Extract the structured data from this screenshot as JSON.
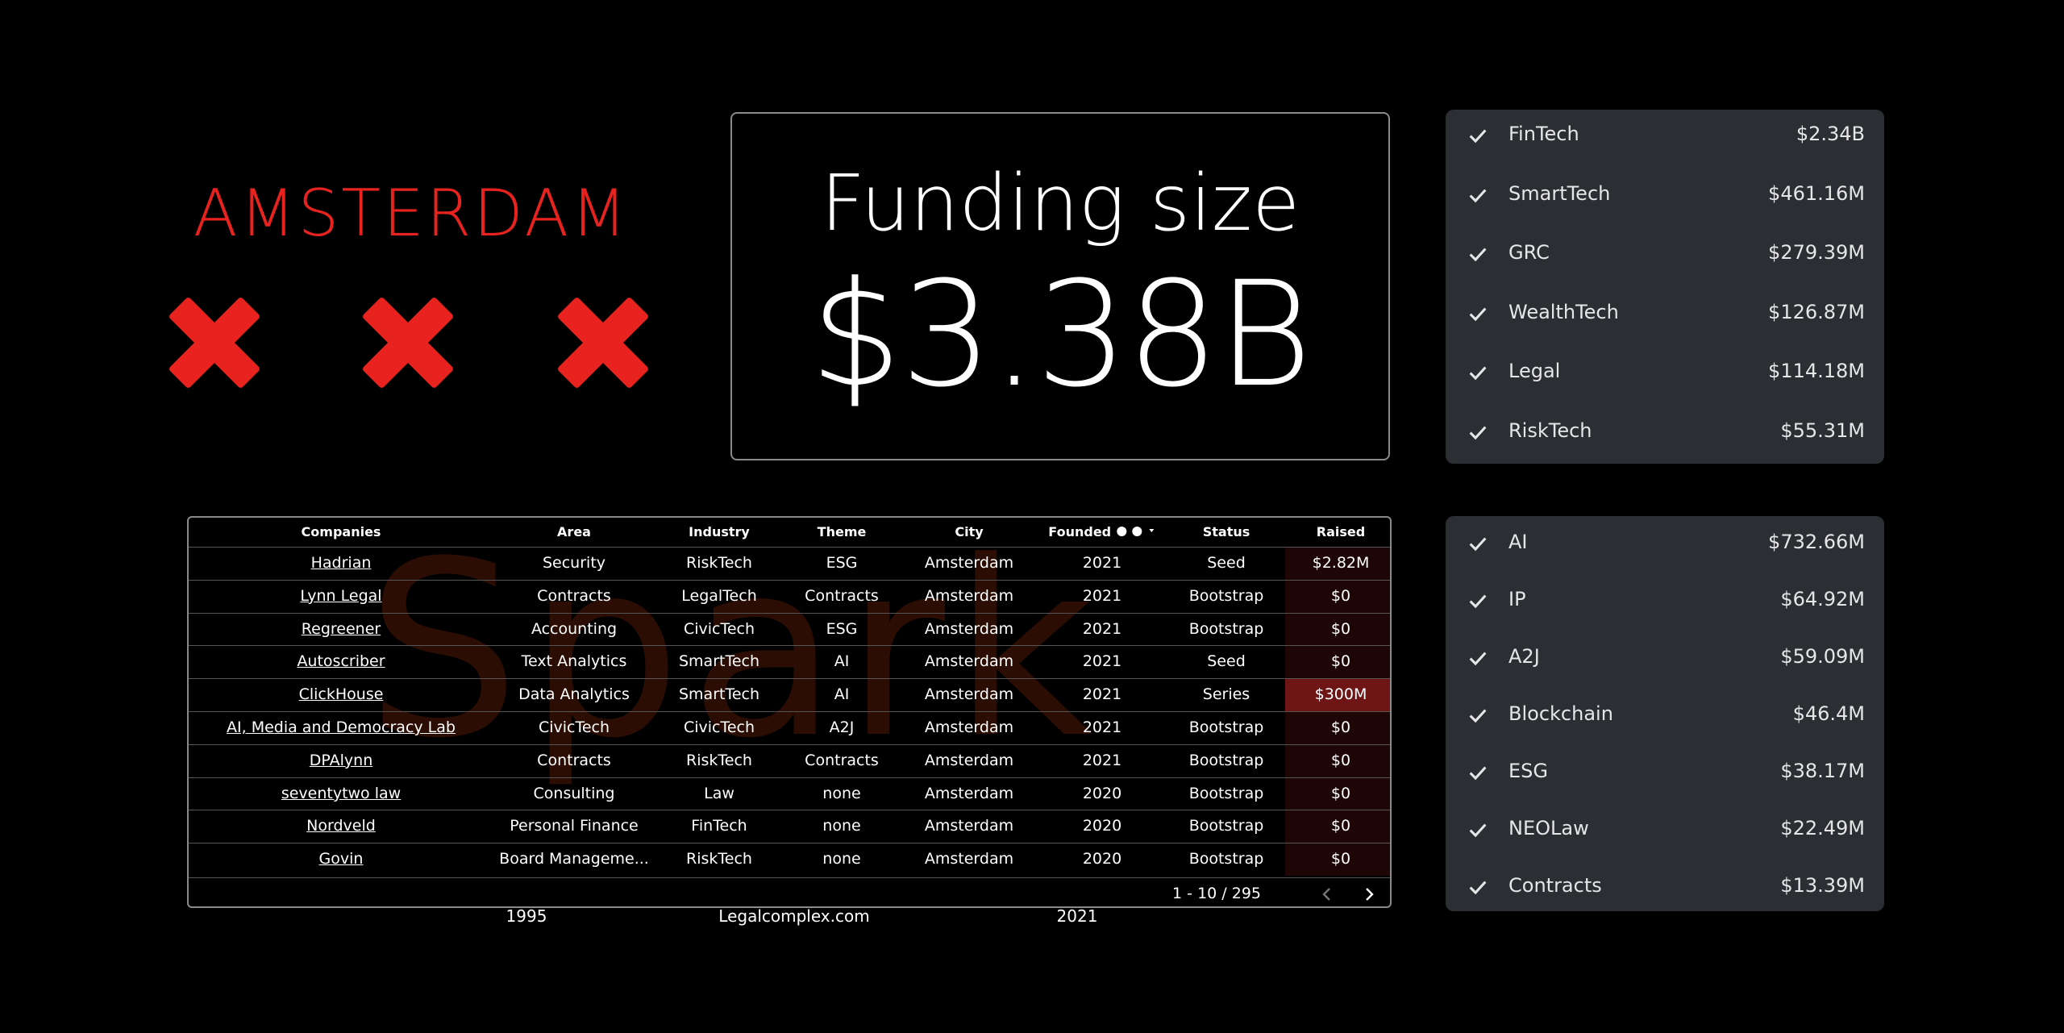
{
  "header": {
    "title": "AMSTERDAM"
  },
  "kpi": {
    "label": "Funding size",
    "value": "$3.38B"
  },
  "industry_filter": {
    "items": [
      {
        "label": "FinTech",
        "value": "$2.34B"
      },
      {
        "label": "SmartTech",
        "value": "$461.16M"
      },
      {
        "label": "GRC",
        "value": "$279.39M"
      },
      {
        "label": "WealthTech",
        "value": "$126.87M"
      },
      {
        "label": "Legal",
        "value": "$114.18M"
      },
      {
        "label": "RiskTech",
        "value": "$55.31M"
      }
    ]
  },
  "theme_filter": {
    "items": [
      {
        "label": "AI",
        "value": "$732.66M"
      },
      {
        "label": "IP",
        "value": "$64.92M"
      },
      {
        "label": "A2J",
        "value": "$59.09M"
      },
      {
        "label": "Blockchain",
        "value": "$46.4M"
      },
      {
        "label": "ESG",
        "value": "$38.17M"
      },
      {
        "label": "NEOLaw",
        "value": "$22.49M"
      },
      {
        "label": "Contracts",
        "value": "$13.39M"
      }
    ]
  },
  "table": {
    "watermark": "Spark",
    "columns": [
      "Companies",
      "Area",
      "Industry",
      "Theme",
      "City",
      "Founded",
      "Status",
      "Raised"
    ],
    "rows": [
      [
        "Hadrian",
        "Security",
        "RiskTech",
        "ESG",
        "Amsterdam",
        "2021",
        "Seed",
        "$2.82M"
      ],
      [
        "Lynn Legal",
        "Contracts",
        "LegalTech",
        "Contracts",
        "Amsterdam",
        "2021",
        "Bootstrap",
        "$0"
      ],
      [
        "Regreener",
        "Accounting",
        "CivicTech",
        "ESG",
        "Amsterdam",
        "2021",
        "Bootstrap",
        "$0"
      ],
      [
        "Autoscriber",
        "Text Analytics",
        "SmartTech",
        "AI",
        "Amsterdam",
        "2021",
        "Seed",
        "$0"
      ],
      [
        "ClickHouse",
        "Data Analytics",
        "SmartTech",
        "AI",
        "Amsterdam",
        "2021",
        "Series",
        "$300M"
      ],
      [
        "AI, Media and Democracy Lab",
        "CivicTech",
        "CivicTech",
        "A2J",
        "Amsterdam",
        "2021",
        "Bootstrap",
        "$0"
      ],
      [
        "DPAlynn",
        "Contracts",
        "RiskTech",
        "Contracts",
        "Amsterdam",
        "2021",
        "Bootstrap",
        "$0"
      ],
      [
        "seventytwo law",
        "Consulting",
        "Law",
        "none",
        "Amsterdam",
        "2020",
        "Bootstrap",
        "$0"
      ],
      [
        "Nordveld",
        "Personal Finance",
        "FinTech",
        "none",
        "Amsterdam",
        "2020",
        "Bootstrap",
        "$0"
      ],
      [
        "Govin",
        "Board Manageme...",
        "RiskTech",
        "none",
        "Amsterdam",
        "2020",
        "Bootstrap",
        "$0"
      ]
    ],
    "pagination": "1 - 10 / 295"
  },
  "footer": {
    "range_start": "1995",
    "source": "Legalcomplex.com",
    "range_end": "2021"
  }
}
